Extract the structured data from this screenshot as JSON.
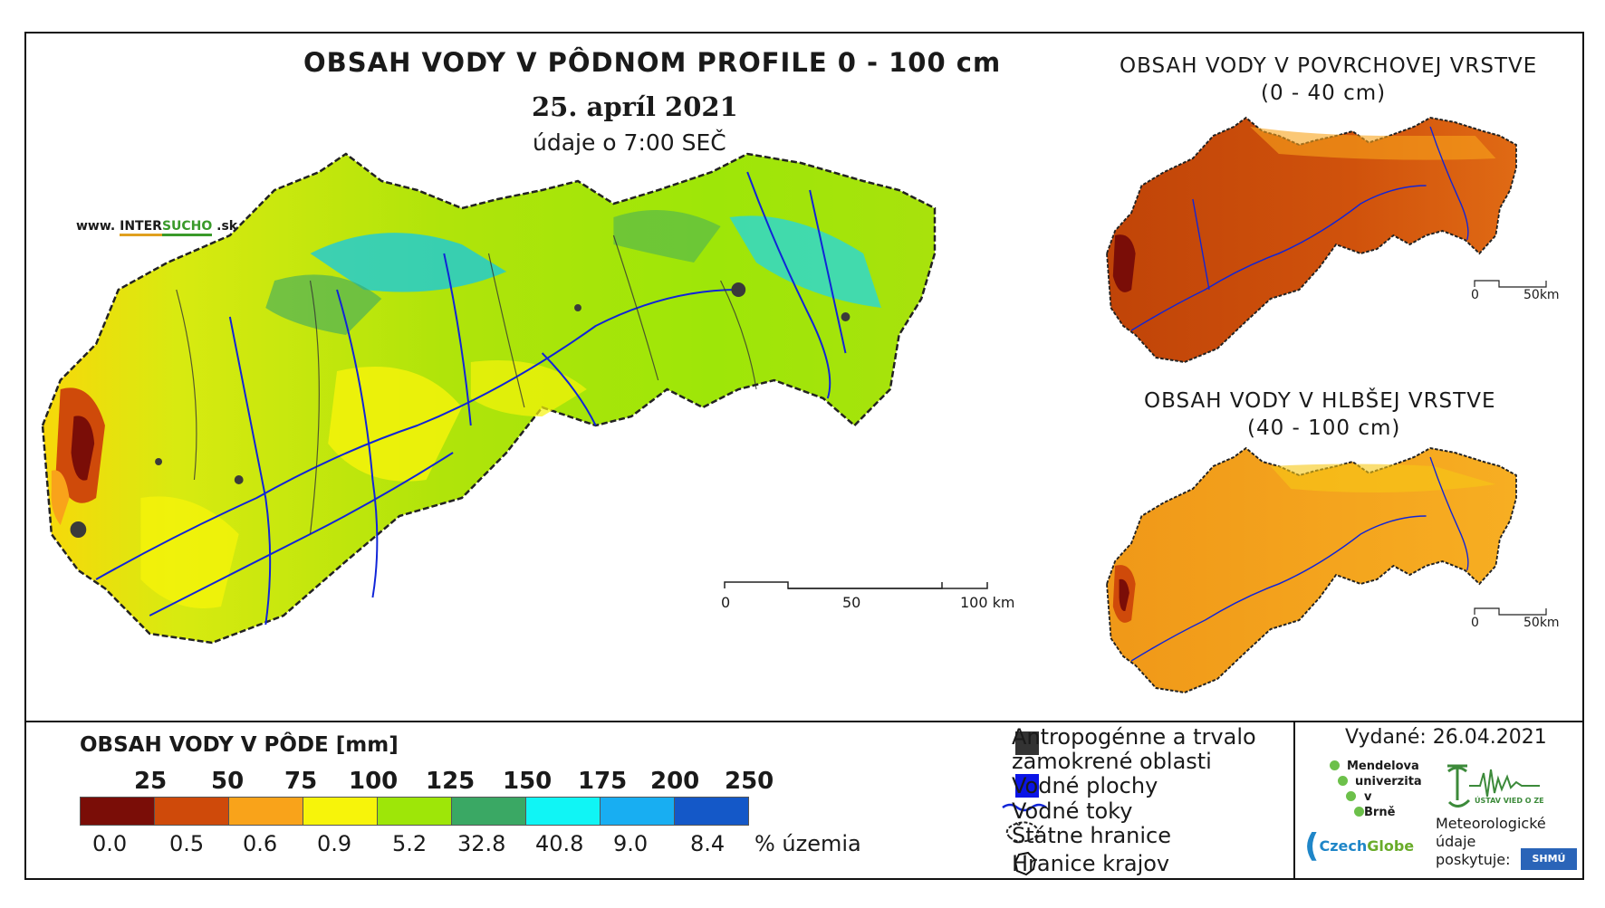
{
  "main": {
    "title": "OBSAH VODY V PÔDNOM PROFILE 0 - 100 cm",
    "date": "25. apríl 2021",
    "data_time": "údaje o 7:00 SEČ",
    "website": {
      "prefix": "www. ",
      "part1": "INTER",
      "part2": "SUCHO",
      "suffix": " .sk"
    },
    "scale": {
      "labels": [
        "0",
        "50",
        "100 km"
      ]
    }
  },
  "surface": {
    "title_line1": "OBSAH VODY V POVRCHOVEJ VRSTVE",
    "title_line2": "(0 - 40 cm)",
    "scale": {
      "labels": [
        "0",
        "50km"
      ]
    }
  },
  "deep": {
    "title_line1": "OBSAH VODY V HLBŠEJ VRSTVE",
    "title_line2": "(40 - 100 cm)",
    "scale": {
      "labels": [
        "0",
        "50km"
      ]
    }
  },
  "legend": {
    "title": "OBSAH VODY V PÔDE [mm]",
    "thresholds": [
      "25",
      "50",
      "75",
      "100",
      "125",
      "150",
      "175",
      "200",
      "250"
    ],
    "colors": [
      "#7a0d07",
      "#cf4a0a",
      "#f9a31a",
      "#f7f40a",
      "#9ee608",
      "#3aa864",
      "#10f5f5",
      "#18aef2",
      "#1458c8"
    ],
    "percent": [
      "0.0",
      "0.5",
      "0.6",
      "0.9",
      "5.2",
      "32.8",
      "40.8",
      "9.0",
      "8.4"
    ],
    "percent_label": "% územia"
  },
  "keys": {
    "anthropogenic_line1": "Antropogénne a trvalo",
    "anthropogenic_line2": "zamokrené oblasti",
    "water_areas": "Vodné plochy",
    "water_streams": "Vodné toky",
    "state_border": "Štátne hranice",
    "region_border": "Hranice krajov",
    "colors": {
      "anthropogenic": "#333333",
      "water": "#0a14e6",
      "stream": "#1024d8"
    }
  },
  "credits": {
    "issued": "Vydané: 26.04.2021",
    "mendel": [
      "Mendelova",
      "univerzita",
      "v Brně"
    ],
    "czechglobe_a": "Czech",
    "czechglobe_b": "Globe",
    "ustav": "ÚSTAV VIED O ZEMI",
    "meteo": [
      "Meteorologické",
      "údaje",
      "poskytuje:"
    ],
    "shmu": "SHMÚ"
  }
}
